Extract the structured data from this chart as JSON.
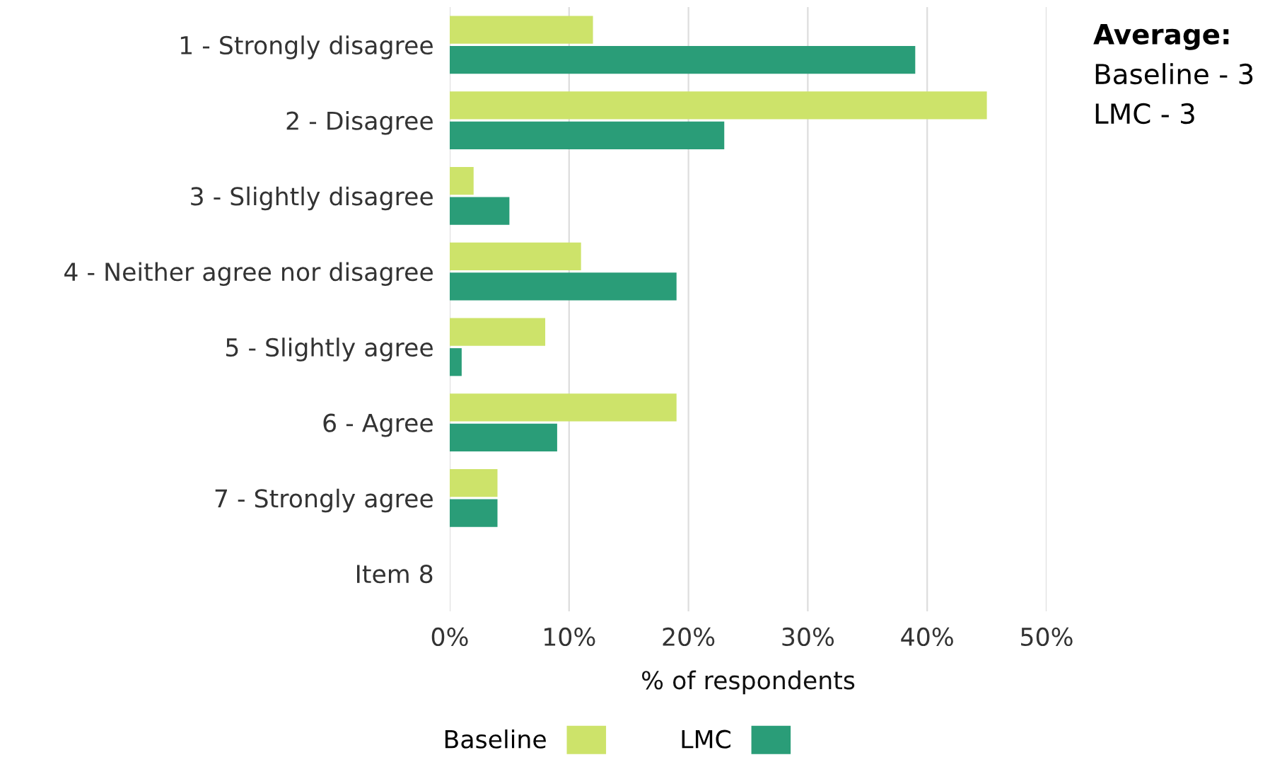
{
  "chart_data": {
    "type": "bar",
    "orientation": "horizontal",
    "categories": [
      "1 - Strongly disagree",
      "2 - Disagree",
      "3 - Slightly disagree",
      "4 - Neither agree nor disagree",
      "5 - Slightly agree",
      "6 - Agree",
      "7 - Strongly agree",
      "Item 8"
    ],
    "series": [
      {
        "name": "Baseline",
        "color": "#cde36a",
        "values": [
          12,
          45,
          2,
          11,
          8,
          19,
          4,
          null
        ]
      },
      {
        "name": "LMC",
        "color": "#2a9d78",
        "values": [
          39,
          23,
          5,
          19,
          1,
          9,
          4,
          null
        ]
      }
    ],
    "xlabel": "% of respondents",
    "xlim": [
      0,
      50
    ],
    "xticks": [
      {
        "value": 0,
        "label": "0%"
      },
      {
        "value": 10,
        "label": "10%"
      },
      {
        "value": 20,
        "label": "20%"
      },
      {
        "value": 30,
        "label": "30%"
      },
      {
        "value": 40,
        "label": "40%"
      },
      {
        "value": 50,
        "label": "50%"
      }
    ],
    "grid": "x",
    "legend": "bottom",
    "annotations": [
      "Average:",
      "Baseline - 3",
      "LMC - 3"
    ]
  }
}
